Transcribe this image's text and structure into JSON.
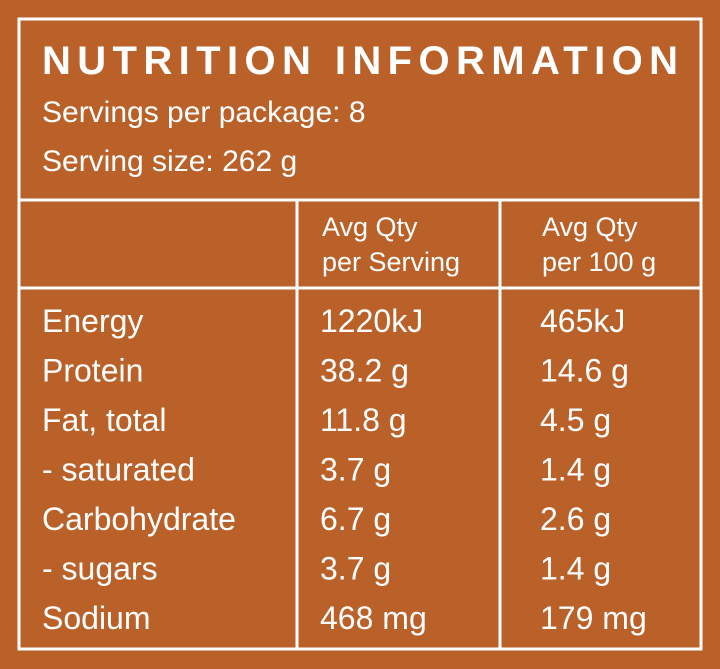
{
  "header": {
    "title": "NUTRITION INFORMATION",
    "servings_per_package": "Servings per package: 8",
    "serving_size": "Serving size: 262 g"
  },
  "table": {
    "column_headers": [
      [
        "Avg Qty",
        "per Serving"
      ],
      [
        "Avg Qty",
        "per 100 g"
      ]
    ],
    "rows": [
      [
        "Energy",
        "1220kJ",
        "465kJ"
      ],
      [
        "Protein",
        "38.2 g",
        "14.6 g"
      ],
      [
        "Fat, total",
        "11.8 g",
        "4.5 g"
      ],
      [
        "- saturated",
        "3.7 g",
        "1.4 g"
      ],
      [
        "Carbohydrate",
        "6.7 g",
        "2.6 g"
      ],
      [
        "- sugars",
        "3.7 g",
        "1.4 g"
      ],
      [
        "Sodium",
        "468 mg",
        "179 mg"
      ]
    ]
  }
}
